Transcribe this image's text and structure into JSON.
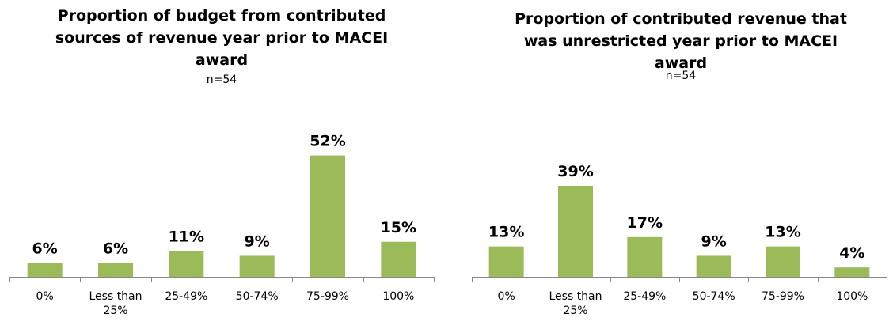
{
  "chart_data": [
    {
      "type": "bar",
      "title": "Proportion of budget from contributed sources of revenue year prior to MACEI award",
      "subtitle": "n=54",
      "categories": [
        "0%",
        "Less than 25%",
        "25-49%",
        "50-74%",
        "75-99%",
        "100%"
      ],
      "values": [
        6,
        6,
        11,
        9,
        52,
        15
      ],
      "value_labels": [
        "6%",
        "6%",
        "11%",
        "9%",
        "52%",
        "15%"
      ],
      "color": "#9bbb59"
    },
    {
      "type": "bar",
      "title": "Proportion of contributed revenue that was unrestricted year prior to MACEI award",
      "subtitle": "n=54",
      "categories": [
        "0%",
        "Less than 25%",
        "25-49%",
        "50-74%",
        "75-99%",
        "100%"
      ],
      "values": [
        13,
        39,
        17,
        9,
        13,
        4
      ],
      "value_labels": [
        "13%",
        "39%",
        "17%",
        "9%",
        "13%",
        "4%"
      ],
      "color": "#9bbb59"
    }
  ]
}
